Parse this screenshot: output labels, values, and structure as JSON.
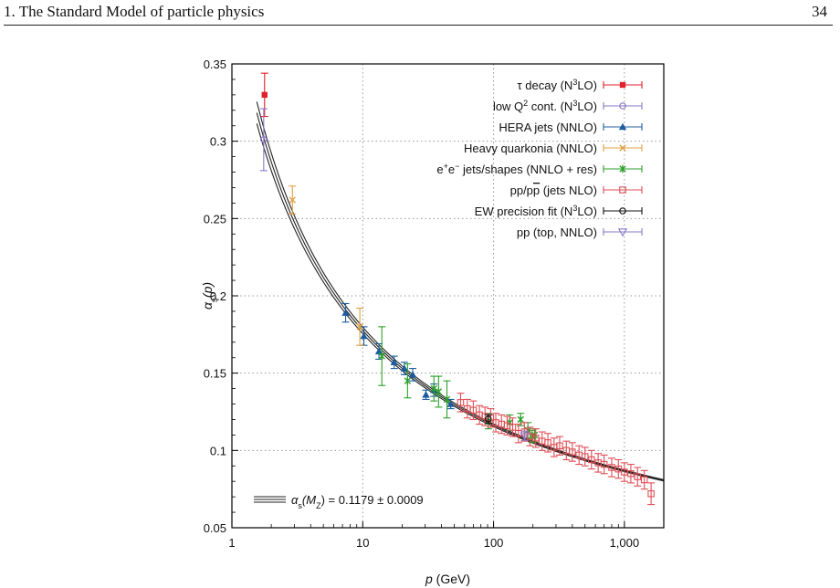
{
  "header": {
    "title": "1. The Standard Model of particle physics",
    "page_number": "34"
  },
  "chart_data": {
    "type": "scatter",
    "xlabel_var": "p",
    "xlabel_unit": " (GeV)",
    "ylabel_var": "α",
    "ylabel_sub": "s",
    "ylabel_arg": "(p)",
    "x_scale": "log",
    "xlim": [
      1,
      2000
    ],
    "ylim": [
      0.05,
      0.35
    ],
    "x_ticks": [
      {
        "value": 1,
        "label": "1"
      },
      {
        "value": 10,
        "label": "10"
      },
      {
        "value": 100,
        "label": "100"
      },
      {
        "value": 1000,
        "label": "1,000"
      }
    ],
    "y_ticks": [
      {
        "value": 0.05,
        "label": "0.05"
      },
      {
        "value": 0.1,
        "label": "0.1"
      },
      {
        "value": 0.15,
        "label": "0.15"
      },
      {
        "value": 0.2,
        "label": "0.2"
      },
      {
        "value": 0.25,
        "label": "0.25"
      },
      {
        "value": 0.3,
        "label": "0.3"
      },
      {
        "value": 0.35,
        "label": "0.35"
      }
    ],
    "grid": "dotted",
    "legend_position": "top-right",
    "band": {
      "label_prefix": "α",
      "label_sub": "s",
      "label_mid": "(M",
      "label_msub": "Z",
      "label_suffix": ") = 0.1179 ± 0.0009",
      "central": 0.1179,
      "uncertainty": 0.0009,
      "mz": 91.19
    },
    "series": [
      {
        "name_parts": [
          {
            "t": "τ decay (N"
          },
          {
            "t": "3",
            "sup": true
          },
          {
            "t": "LO)"
          }
        ],
        "marker": "filled-square",
        "color": "#e0202a",
        "points": [
          {
            "x": 1.777,
            "y": 0.33,
            "err": 0.014
          }
        ]
      },
      {
        "name_parts": [
          {
            "t": "low Q"
          },
          {
            "t": "2",
            "sup": true
          },
          {
            "t": " cont. (N"
          },
          {
            "t": "3",
            "sup": true
          },
          {
            "t": "LO)"
          }
        ],
        "marker": "open-circle",
        "color": "#8a78c4",
        "points": [
          {
            "x": 1.75,
            "y": 0.301,
            "err": 0.02
          }
        ]
      },
      {
        "name_parts": [
          {
            "t": "HERA jets (NNLO)"
          }
        ],
        "marker": "filled-triangle",
        "color": "#1d5c9e",
        "points": [
          {
            "x": 7.4,
            "y": 0.189,
            "err": 0.006
          },
          {
            "x": 10.2,
            "y": 0.174,
            "err": 0.006
          },
          {
            "x": 13.3,
            "y": 0.164,
            "err": 0.005
          },
          {
            "x": 17.4,
            "y": 0.157,
            "err": 0.004
          },
          {
            "x": 20.8,
            "y": 0.153,
            "err": 0.004
          },
          {
            "x": 24.1,
            "y": 0.149,
            "err": 0.004
          },
          {
            "x": 30.4,
            "y": 0.136,
            "err": 0.003
          },
          {
            "x": 35.0,
            "y": 0.139,
            "err": 0.004
          },
          {
            "x": 47.0,
            "y": 0.13,
            "err": 0.003
          }
        ]
      },
      {
        "name_parts": [
          {
            "t": "Heavy quarkonia (NNLO)"
          }
        ],
        "marker": "cross",
        "color": "#e0a040",
        "points": [
          {
            "x": 2.9,
            "y": 0.262,
            "err": 0.009
          },
          {
            "x": 9.5,
            "y": 0.18,
            "err": 0.012
          }
        ]
      },
      {
        "name_parts": [
          {
            "t": "e"
          },
          {
            "t": "+",
            "sup": true
          },
          {
            "t": "e"
          },
          {
            "t": "−",
            "sup": true
          },
          {
            "t": " jets/shapes (NNLO + res)"
          }
        ],
        "marker": "star",
        "color": "#2aa02a",
        "points": [
          {
            "x": 14.0,
            "y": 0.161,
            "err": 0.019
          },
          {
            "x": 22.0,
            "y": 0.145,
            "err": 0.011
          },
          {
            "x": 35.0,
            "y": 0.14,
            "err": 0.008
          },
          {
            "x": 38.0,
            "y": 0.138,
            "err": 0.01
          },
          {
            "x": 44.0,
            "y": 0.133,
            "err": 0.012
          },
          {
            "x": 91.2,
            "y": 0.119,
            "err": 0.005
          },
          {
            "x": 133.0,
            "y": 0.118,
            "err": 0.005
          },
          {
            "x": 161.0,
            "y": 0.12,
            "err": 0.004
          },
          {
            "x": 183.0,
            "y": 0.113,
            "err": 0.005
          },
          {
            "x": 197.0,
            "y": 0.109,
            "err": 0.004
          },
          {
            "x": 206.0,
            "y": 0.11,
            "err": 0.004
          }
        ]
      },
      {
        "name_parts": [
          {
            "t": "pp/p"
          },
          {
            "t": "p",
            "over": true
          },
          {
            "t": " (jets NLO)"
          }
        ],
        "marker": "open-square",
        "color": "#e04c54",
        "points": [
          {
            "x": 56,
            "y": 0.131,
            "err": 0.006
          },
          {
            "x": 63,
            "y": 0.127,
            "err": 0.006
          },
          {
            "x": 70,
            "y": 0.126,
            "err": 0.006
          },
          {
            "x": 78,
            "y": 0.123,
            "err": 0.006
          },
          {
            "x": 86,
            "y": 0.122,
            "err": 0.006
          },
          {
            "x": 95,
            "y": 0.121,
            "err": 0.006
          },
          {
            "x": 104,
            "y": 0.118,
            "err": 0.006
          },
          {
            "x": 115,
            "y": 0.117,
            "err": 0.006
          },
          {
            "x": 127,
            "y": 0.116,
            "err": 0.006
          },
          {
            "x": 140,
            "y": 0.115,
            "err": 0.006
          },
          {
            "x": 155,
            "y": 0.111,
            "err": 0.006
          },
          {
            "x": 172,
            "y": 0.112,
            "err": 0.006
          },
          {
            "x": 190,
            "y": 0.109,
            "err": 0.006
          },
          {
            "x": 210,
            "y": 0.108,
            "err": 0.006
          },
          {
            "x": 235,
            "y": 0.106,
            "err": 0.006
          },
          {
            "x": 260,
            "y": 0.105,
            "err": 0.006
          },
          {
            "x": 290,
            "y": 0.102,
            "err": 0.006
          },
          {
            "x": 320,
            "y": 0.103,
            "err": 0.006
          },
          {
            "x": 360,
            "y": 0.1,
            "err": 0.006
          },
          {
            "x": 400,
            "y": 0.099,
            "err": 0.006
          },
          {
            "x": 450,
            "y": 0.097,
            "err": 0.006
          },
          {
            "x": 500,
            "y": 0.096,
            "err": 0.006
          },
          {
            "x": 560,
            "y": 0.094,
            "err": 0.006
          },
          {
            "x": 630,
            "y": 0.092,
            "err": 0.006
          },
          {
            "x": 700,
            "y": 0.091,
            "err": 0.006
          },
          {
            "x": 800,
            "y": 0.089,
            "err": 0.006
          },
          {
            "x": 900,
            "y": 0.088,
            "err": 0.006
          },
          {
            "x": 1000,
            "y": 0.086,
            "err": 0.006
          },
          {
            "x": 1120,
            "y": 0.085,
            "err": 0.006
          },
          {
            "x": 1260,
            "y": 0.083,
            "err": 0.006
          },
          {
            "x": 1420,
            "y": 0.081,
            "err": 0.006
          },
          {
            "x": 1600,
            "y": 0.072,
            "err": 0.007
          }
        ]
      },
      {
        "name_parts": [
          {
            "t": "EW precision fit (N"
          },
          {
            "t": "3",
            "sup": true
          },
          {
            "t": "LO)"
          }
        ],
        "marker": "open-circle",
        "color": "#111111",
        "points": [
          {
            "x": 91.19,
            "y": 0.1203,
            "err": 0.0028
          }
        ]
      },
      {
        "name_parts": [
          {
            "t": "pp (top, NNLO)"
          }
        ],
        "marker": "open-triangle-down",
        "color": "#8a78c4",
        "points": [
          {
            "x": 173,
            "y": 0.1095,
            "err": 0.003
          }
        ]
      }
    ]
  }
}
